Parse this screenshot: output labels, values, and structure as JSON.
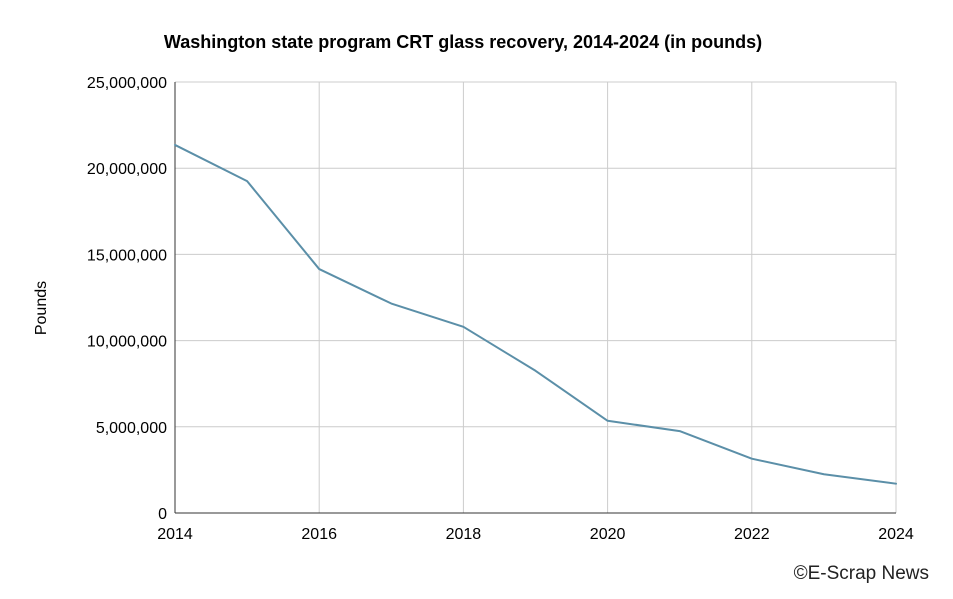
{
  "chart_data": {
    "type": "line",
    "title": "Washington state program CRT glass recovery, 2014-2024 (in pounds)",
    "xlabel": "",
    "ylabel": "Pounds",
    "x": [
      2014,
      2015,
      2016,
      2017,
      2018,
      2019,
      2020,
      2021,
      2022,
      2023,
      2024
    ],
    "series": [
      {
        "values": [
          21350000,
          19250000,
          14150000,
          12150000,
          10800000,
          8250000,
          5350000,
          4750000,
          3150000,
          2250000,
          1700000
        ],
        "color": "#5b8fa8"
      }
    ],
    "xlim": [
      2014,
      2024
    ],
    "ylim": [
      0,
      25000000
    ],
    "x_ticks": [
      "2014",
      "2016",
      "2018",
      "2020",
      "2022",
      "2024"
    ],
    "y_ticks": [
      "0",
      "5,000,000",
      "10,000,000",
      "15,000,000",
      "20,000,000",
      "25,000,000"
    ],
    "grid": true,
    "gridline_color": "#cccccc",
    "legend": "none"
  },
  "credit": "©E-Scrap News"
}
